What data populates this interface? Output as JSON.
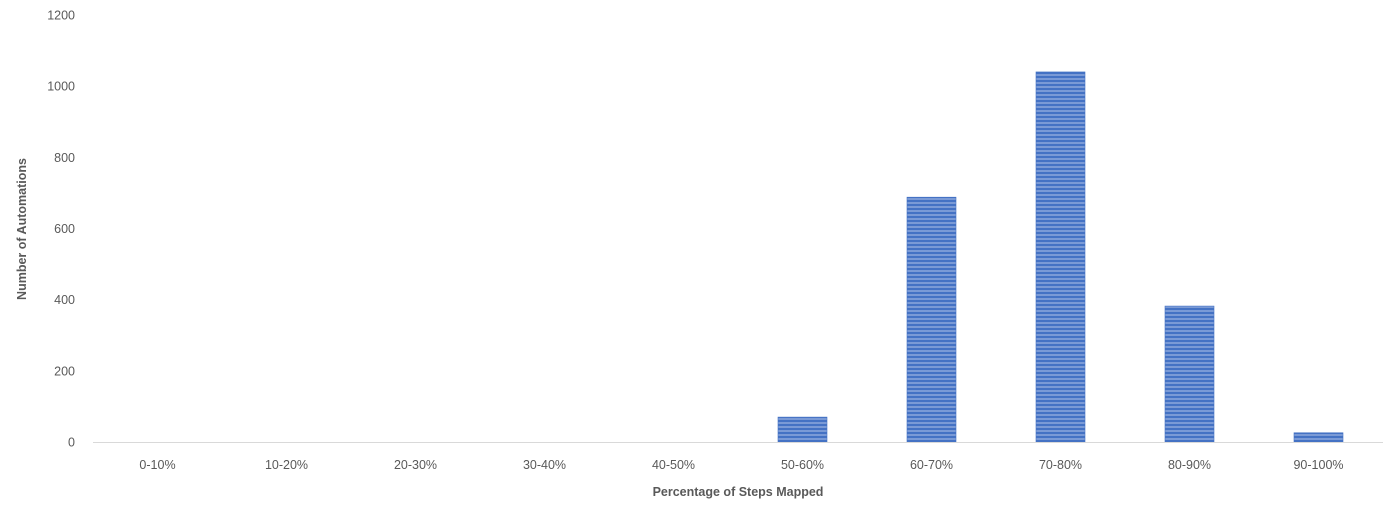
{
  "chart_data": {
    "type": "bar",
    "title": "",
    "xlabel": "Percentage of Steps Mapped",
    "ylabel": "Number of Automations",
    "categories": [
      "0-10%",
      "10-20%",
      "20-30%",
      "30-40%",
      "40-50%",
      "50-60%",
      "60-70%",
      "70-80%",
      "80-90%",
      "90-100%"
    ],
    "series": [
      {
        "values": [
          0,
          0,
          0,
          0,
          0,
          70,
          688,
          1040,
          382,
          26
        ]
      }
    ],
    "ylim": [
      0,
      1200
    ],
    "yticks": [
      0,
      200,
      400,
      600,
      800,
      1000,
      1200
    ],
    "grid": false,
    "legend": "none",
    "colors": {
      "bar_fill": "#7a9ad6",
      "bar_stripe": "#4472c4",
      "bar_edge": "#4472c4",
      "axis_line": "#d9d9d9",
      "text": "#595959"
    }
  }
}
